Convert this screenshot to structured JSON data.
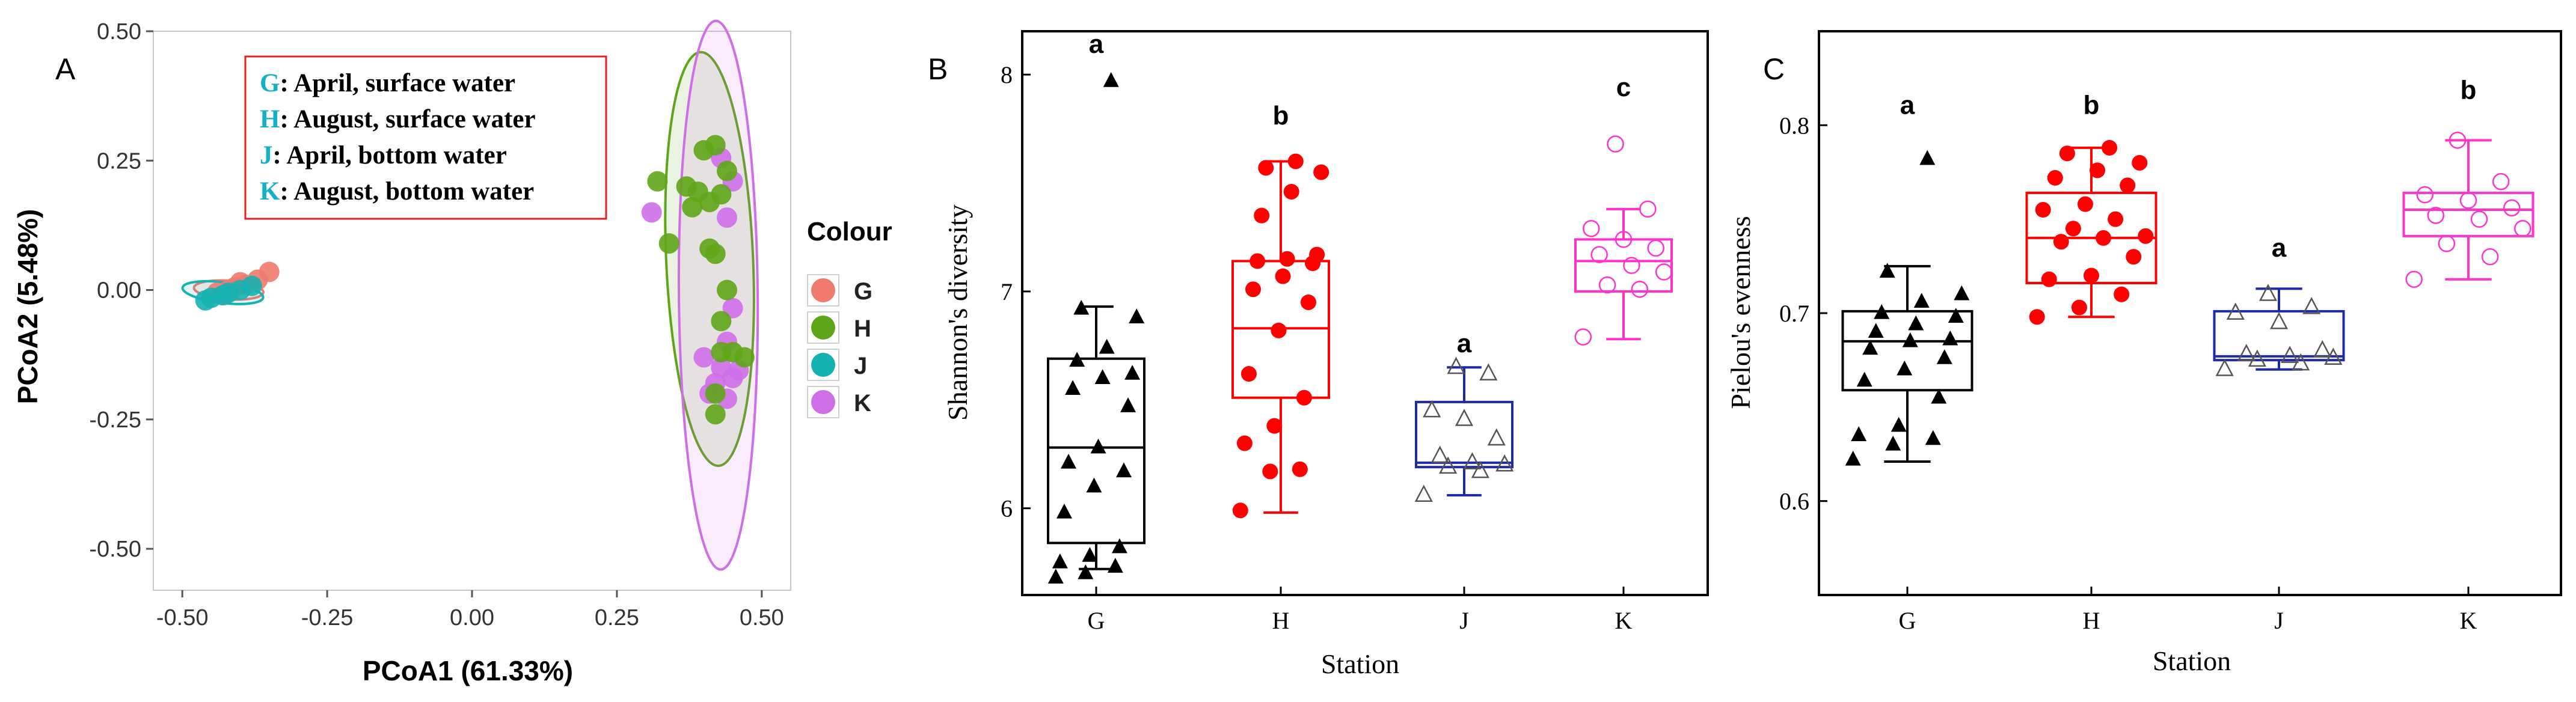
{
  "panels": {
    "A": {
      "panel_label": "A",
      "chart_data": {
        "type": "scatter",
        "title": "",
        "xlabel": "PCoA1 (61.33%)",
        "ylabel": "PCoA2 (5.48%)",
        "xlim": [
          -0.55,
          0.55
        ],
        "ylim": [
          -0.58,
          0.5
        ],
        "xticks": [
          -0.5,
          -0.25,
          0.0,
          0.25,
          0.5
        ],
        "xtick_labels": [
          "-0.50",
          "-0.25",
          "0.00",
          "0.25",
          "0.50"
        ],
        "yticks": [
          -0.5,
          -0.25,
          0.0,
          0.25,
          0.5
        ],
        "ytick_labels": [
          "-0.50",
          "-0.25",
          "0.00",
          "0.25",
          "0.50"
        ],
        "legend_title": "Colour",
        "legend": [
          {
            "key": "G",
            "color": "#f07a6e"
          },
          {
            "key": "H",
            "color": "#5fa51a"
          },
          {
            "key": "J",
            "color": "#16b2b2"
          },
          {
            "key": "K",
            "color": "#cf6fe8"
          }
        ],
        "annotation_lines": [
          {
            "code": "G",
            "text": ": April, surface water"
          },
          {
            "code": "H",
            "text": ": August, surface water"
          },
          {
            "code": "J",
            "text": ": April, bottom water"
          },
          {
            "code": "K",
            "text": ": August, bottom water"
          }
        ],
        "ellipses": [
          {
            "group": "G",
            "cx": -0.42,
            "cy": 0.0,
            "rx": 0.06,
            "ry": 0.018,
            "angle": 4,
            "fill": "#f07a6e",
            "stroke": "#f07a6e"
          },
          {
            "group": "J",
            "cx": -0.43,
            "cy": -0.005,
            "rx": 0.07,
            "ry": 0.02,
            "angle": 7,
            "fill": "#16b2b2",
            "stroke": "#16b2b2"
          },
          {
            "group": "H",
            "cx": 0.41,
            "cy": 0.06,
            "rx": 0.075,
            "ry": 0.4,
            "angle": -2.5,
            "fill": "#5fa51a",
            "stroke": "#5fa51a"
          },
          {
            "group": "K",
            "cx": 0.425,
            "cy": -0.01,
            "rx": 0.068,
            "ry": 0.53,
            "angle": -0.5,
            "fill": "#cf6fe8",
            "stroke": "#cf6fe8"
          }
        ],
        "series": [
          {
            "name": "G",
            "color": "#f07a6e",
            "points": [
              [
                -0.35,
                0.035
              ],
              [
                -0.37,
                0.02
              ],
              [
                -0.39,
                0.01
              ],
              [
                -0.4,
                0.015
              ],
              [
                -0.41,
                0.005
              ],
              [
                -0.42,
                0.0
              ],
              [
                -0.43,
                -0.01
              ],
              [
                -0.44,
                -0.005
              ]
            ]
          },
          {
            "name": "J",
            "color": "#16b2b2",
            "points": [
              [
                -0.38,
                0.008
              ],
              [
                -0.4,
                0.0
              ],
              [
                -0.42,
                -0.005
              ],
              [
                -0.43,
                -0.01
              ],
              [
                -0.45,
                -0.015
              ],
              [
                -0.46,
                -0.02
              ]
            ]
          },
          {
            "name": "K",
            "color": "#cf6fe8",
            "points": [
              [
                0.31,
                0.15
              ],
              [
                0.43,
                0.255
              ],
              [
                0.45,
                0.21
              ],
              [
                0.44,
                0.14
              ],
              [
                0.45,
                -0.035
              ],
              [
                0.44,
                -0.1
              ],
              [
                0.43,
                -0.15
              ],
              [
                0.4,
                -0.13
              ],
              [
                0.42,
                -0.18
              ],
              [
                0.45,
                -0.17
              ],
              [
                0.41,
                -0.2
              ],
              [
                0.44,
                -0.21
              ],
              [
                0.46,
                -0.155
              ]
            ]
          },
          {
            "name": "H",
            "color": "#5fa51a",
            "points": [
              [
                0.32,
                0.21
              ],
              [
                0.42,
                0.28
              ],
              [
                0.4,
                0.27
              ],
              [
                0.44,
                0.23
              ],
              [
                0.37,
                0.2
              ],
              [
                0.39,
                0.19
              ],
              [
                0.43,
                0.185
              ],
              [
                0.41,
                0.17
              ],
              [
                0.38,
                0.16
              ],
              [
                0.34,
                0.09
              ],
              [
                0.41,
                0.08
              ],
              [
                0.42,
                0.07
              ],
              [
                0.44,
                0.0
              ],
              [
                0.45,
                -0.12
              ],
              [
                0.47,
                -0.13
              ],
              [
                0.43,
                -0.12
              ],
              [
                0.42,
                -0.2
              ],
              [
                0.42,
                -0.24
              ],
              [
                0.43,
                -0.06
              ]
            ]
          }
        ]
      }
    },
    "B": {
      "panel_label": "B",
      "chart_data": {
        "type": "box",
        "title": "",
        "xlabel": "Station",
        "ylabel": "Shannon's diversity",
        "categories": [
          "G",
          "H",
          "J",
          "K"
        ],
        "ylim": [
          5.6,
          8.2
        ],
        "yticks": [
          6,
          7,
          8
        ],
        "ytick_labels": [
          "6",
          "7",
          "8"
        ],
        "significance_letters": [
          "a",
          "b",
          "a",
          "c"
        ],
        "letter_y": [
          8.1,
          7.77,
          6.72,
          7.9
        ],
        "groups": [
          {
            "name": "G",
            "color": "#000000",
            "marker": "triangle-filled",
            "q1": 5.84,
            "median": 6.28,
            "q3": 6.69,
            "whisker_low": 5.72,
            "whisker_high": 6.93,
            "points": [
              5.68,
              5.7,
              5.73,
              5.75,
              5.78,
              5.82,
              5.98,
              6.1,
              6.17,
              6.21,
              6.28,
              6.47,
              6.55,
              6.6,
              6.62,
              6.68,
              6.74,
              6.88,
              6.92,
              7.97
            ]
          },
          {
            "name": "H",
            "color": "#ff0000",
            "marker": "circle-filled",
            "q1": 6.51,
            "median": 6.83,
            "q3": 7.14,
            "whisker_low": 5.98,
            "whisker_high": 7.6,
            "points": [
              5.99,
              6.17,
              6.18,
              6.3,
              6.38,
              6.51,
              6.62,
              6.82,
              6.95,
              7.01,
              7.07,
              7.13,
              7.14,
              7.15,
              7.17,
              7.35,
              7.46,
              7.55,
              7.57,
              7.6
            ]
          },
          {
            "name": "J",
            "color": "#1f2aa8",
            "marker": "triangle-open",
            "q1": 6.19,
            "median": 6.21,
            "q3": 6.49,
            "whisker_low": 6.06,
            "whisker_high": 6.65,
            "points": [
              6.06,
              6.17,
              6.19,
              6.2,
              6.21,
              6.24,
              6.32,
              6.41,
              6.45,
              6.62,
              6.65
            ]
          },
          {
            "name": "K",
            "color": "#ff33cc",
            "marker": "circle-open",
            "q1": 7.0,
            "median": 7.14,
            "q3": 7.24,
            "whisker_low": 6.78,
            "whisker_high": 7.38,
            "points": [
              6.79,
              7.01,
              7.03,
              7.09,
              7.12,
              7.17,
              7.2,
              7.24,
              7.29,
              7.38,
              7.68
            ]
          }
        ]
      }
    },
    "C": {
      "panel_label": "C",
      "chart_data": {
        "type": "box",
        "title": "",
        "xlabel": "Station",
        "ylabel": "Pielou's evenness",
        "categories": [
          "G",
          "H",
          "J",
          "K"
        ],
        "ylim": [
          0.55,
          0.85
        ],
        "yticks": [
          0.6,
          0.7,
          0.8
        ],
        "ytick_labels": [
          "0.6",
          "0.7",
          "0.8"
        ],
        "significance_letters": [
          "a",
          "b",
          "a",
          "b"
        ],
        "letter_y": [
          0.806,
          0.806,
          0.73,
          0.814
        ],
        "groups": [
          {
            "name": "G",
            "color": "#000000",
            "marker": "triangle-filled",
            "q1": 0.659,
            "median": 0.685,
            "q3": 0.701,
            "whisker_low": 0.621,
            "whisker_high": 0.725,
            "points": [
              0.622,
              0.63,
              0.633,
              0.635,
              0.64,
              0.655,
              0.664,
              0.67,
              0.676,
              0.681,
              0.685,
              0.686,
              0.69,
              0.694,
              0.698,
              0.7,
              0.706,
              0.71,
              0.722,
              0.782
            ]
          },
          {
            "name": "H",
            "color": "#ff0000",
            "marker": "circle-filled",
            "q1": 0.716,
            "median": 0.74,
            "q3": 0.764,
            "whisker_low": 0.698,
            "whisker_high": 0.788,
            "points": [
              0.698,
              0.703,
              0.71,
              0.718,
              0.72,
              0.73,
              0.738,
              0.74,
              0.741,
              0.745,
              0.75,
              0.755,
              0.758,
              0.768,
              0.772,
              0.776,
              0.78,
              0.785,
              0.788
            ]
          },
          {
            "name": "J",
            "color": "#1f2aa8",
            "marker": "triangle-open",
            "q1": 0.675,
            "median": 0.677,
            "q3": 0.701,
            "whisker_low": 0.67,
            "whisker_high": 0.713,
            "points": [
              0.67,
              0.673,
              0.675,
              0.676,
              0.677,
              0.678,
              0.68,
              0.695,
              0.7,
              0.703,
              0.71
            ]
          },
          {
            "name": "K",
            "color": "#ff33cc",
            "marker": "circle-open",
            "q1": 0.741,
            "median": 0.755,
            "q3": 0.764,
            "whisker_low": 0.718,
            "whisker_high": 0.792,
            "points": [
              0.718,
              0.73,
              0.737,
              0.745,
              0.75,
              0.752,
              0.756,
              0.76,
              0.763,
              0.77,
              0.792
            ]
          }
        ]
      }
    }
  }
}
